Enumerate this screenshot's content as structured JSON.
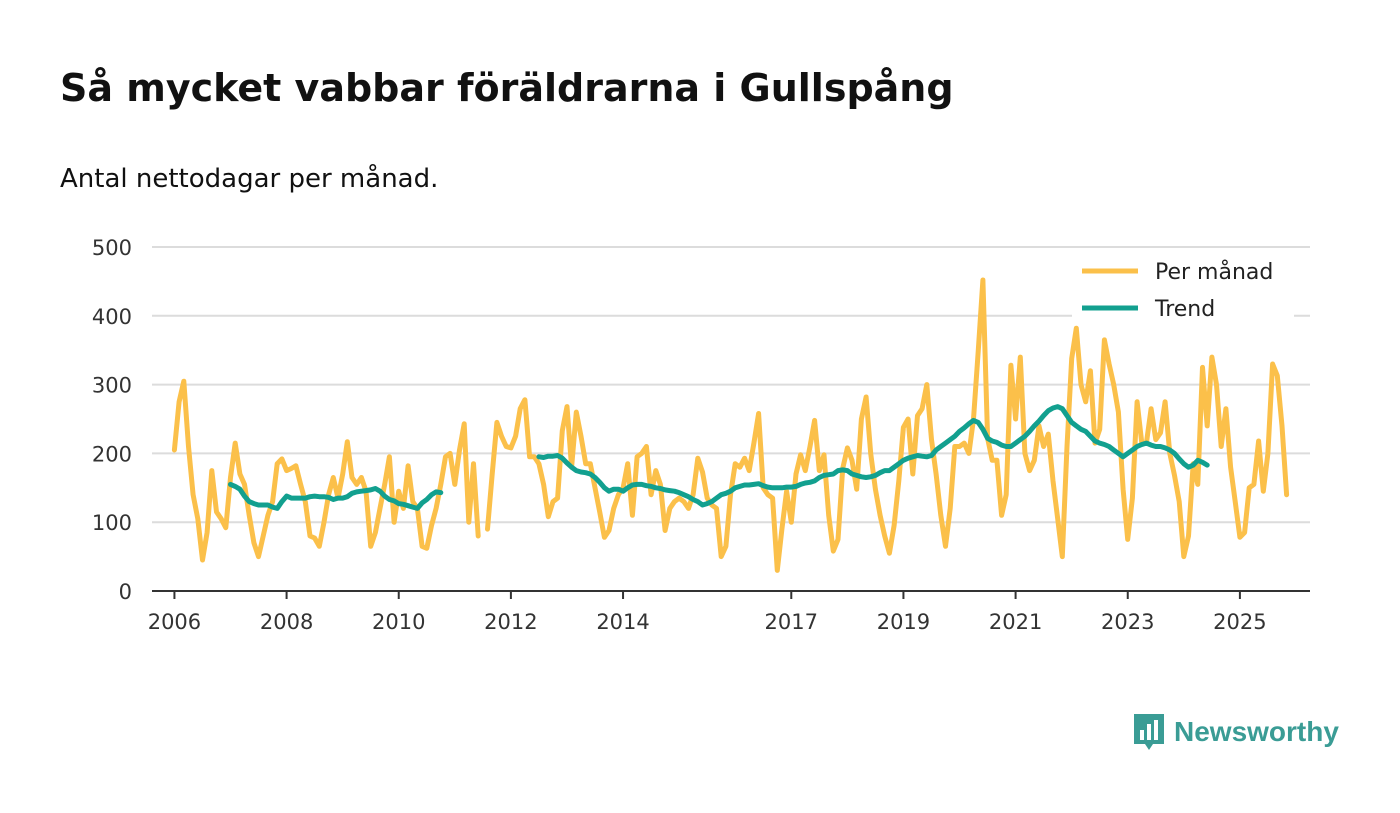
{
  "title": "Så mycket vabbar föräldrarna i Gullspång",
  "subtitle": "Antal nettodagar per månad.",
  "brand": {
    "name": "Newsworthy",
    "icon": "newsworthy-logo-icon"
  },
  "colors": {
    "monthly": "#fbc04a",
    "trend": "#12a08f",
    "grid": "#dcdcdc",
    "axis": "#333333",
    "brand": "#3a9c95"
  },
  "chart_data": {
    "type": "line",
    "title": "Så mycket vabbar föräldrarna i Gullspång",
    "xlabel": "",
    "ylabel": "",
    "ylim": [
      0,
      500
    ],
    "xlim": [
      2005.6,
      2026.25
    ],
    "yticks": [
      0,
      100,
      200,
      300,
      400,
      500
    ],
    "xticks": [
      2006,
      2008,
      2010,
      2012,
      2014,
      2017,
      2019,
      2021,
      2023,
      2025
    ],
    "x_start": 2006.0,
    "x_step": 0.0833333,
    "legend": {
      "position": "top-right",
      "entries": [
        "Per månad",
        "Trend"
      ]
    },
    "series": [
      {
        "name": "Per månad",
        "values": [
          205,
          275,
          305,
          210,
          140,
          105,
          45,
          85,
          175,
          115,
          105,
          92,
          165,
          215,
          170,
          155,
          110,
          70,
          50,
          80,
          110,
          130,
          185,
          192,
          175,
          178,
          182,
          155,
          130,
          80,
          77,
          65,
          100,
          140,
          165,
          135,
          170,
          217,
          165,
          155,
          165,
          145,
          65,
          85,
          120,
          155,
          195,
          100,
          145,
          120,
          182,
          130,
          120,
          65,
          62,
          95,
          120,
          155,
          195,
          200,
          155,
          205,
          243,
          100,
          185,
          80,
          null,
          90,
          170,
          245,
          225,
          210,
          208,
          225,
          265,
          278,
          195,
          195,
          185,
          155,
          108,
          130,
          135,
          233,
          268,
          180,
          260,
          225,
          185,
          185,
          150,
          115,
          78,
          88,
          120,
          140,
          150,
          185,
          110,
          195,
          200,
          210,
          140,
          175,
          155,
          88,
          120,
          130,
          135,
          130,
          120,
          140,
          193,
          173,
          135,
          125,
          120,
          50,
          65,
          140,
          185,
          180,
          193,
          175,
          215,
          258,
          150,
          140,
          135,
          30,
          90,
          145,
          100,
          170,
          198,
          175,
          210,
          248,
          175,
          198,
          110,
          58,
          75,
          178,
          208,
          190,
          148,
          250,
          282,
          200,
          148,
          110,
          80,
          55,
          95,
          160,
          238,
          250,
          170,
          255,
          265,
          300,
          220,
          170,
          110,
          65,
          120,
          210,
          210,
          215,
          200,
          250,
          348,
          452,
          222,
          190,
          190,
          110,
          140,
          328,
          250,
          340,
          200,
          175,
          190,
          240,
          210,
          228,
          160,
          105,
          50,
          210,
          338,
          382,
          300,
          275,
          320,
          215,
          235,
          365,
          330,
          300,
          260,
          148,
          75,
          135,
          275,
          215,
          215,
          265,
          220,
          230,
          275,
          200,
          168,
          130,
          50,
          80,
          185,
          155,
          325,
          240,
          340,
          300,
          210,
          265,
          180,
          130,
          78,
          85,
          150,
          155,
          218,
          145,
          200,
          330,
          313,
          240,
          140
        ]
      },
      {
        "name": "Trend",
        "values": [
          null,
          null,
          null,
          null,
          null,
          null,
          null,
          null,
          null,
          null,
          null,
          null,
          155,
          152,
          148,
          138,
          130,
          127,
          125,
          125,
          125,
          122,
          120,
          130,
          138,
          135,
          135,
          135,
          135,
          137,
          138,
          137,
          137,
          136,
          133,
          135,
          135,
          137,
          142,
          144,
          145,
          146,
          147,
          149,
          145,
          138,
          133,
          131,
          127,
          126,
          124,
          122,
          120,
          128,
          133,
          140,
          144,
          143,
          null,
          null,
          null,
          null,
          null,
          null,
          null,
          null,
          null,
          null,
          null,
          null,
          null,
          null,
          null,
          null,
          null,
          null,
          null,
          null,
          195,
          194,
          196,
          196,
          197,
          193,
          186,
          180,
          175,
          173,
          172,
          170,
          165,
          158,
          150,
          145,
          148,
          148,
          145,
          150,
          154,
          155,
          155,
          153,
          152,
          150,
          149,
          147,
          146,
          145,
          143,
          140,
          137,
          133,
          130,
          125,
          127,
          130,
          135,
          140,
          142,
          145,
          150,
          152,
          154,
          154,
          155,
          156,
          153,
          151,
          150,
          150,
          150,
          151,
          151,
          152,
          155,
          157,
          158,
          160,
          165,
          168,
          169,
          170,
          175,
          176,
          175,
          170,
          168,
          166,
          165,
          166,
          168,
          172,
          175,
          175,
          180,
          185,
          190,
          193,
          195,
          197,
          196,
          195,
          197,
          205,
          210,
          215,
          220,
          225,
          232,
          237,
          243,
          248,
          245,
          235,
          222,
          218,
          216,
          212,
          210,
          210,
          215,
          220,
          225,
          232,
          240,
          247,
          255,
          262,
          266,
          268,
          265,
          255,
          245,
          240,
          235,
          232,
          225,
          218,
          215,
          213,
          210,
          205,
          200,
          195,
          200,
          205,
          210,
          213,
          215,
          212,
          210,
          210,
          208,
          205,
          200,
          192,
          185,
          180,
          183,
          190,
          187,
          183
        ]
      }
    ]
  }
}
